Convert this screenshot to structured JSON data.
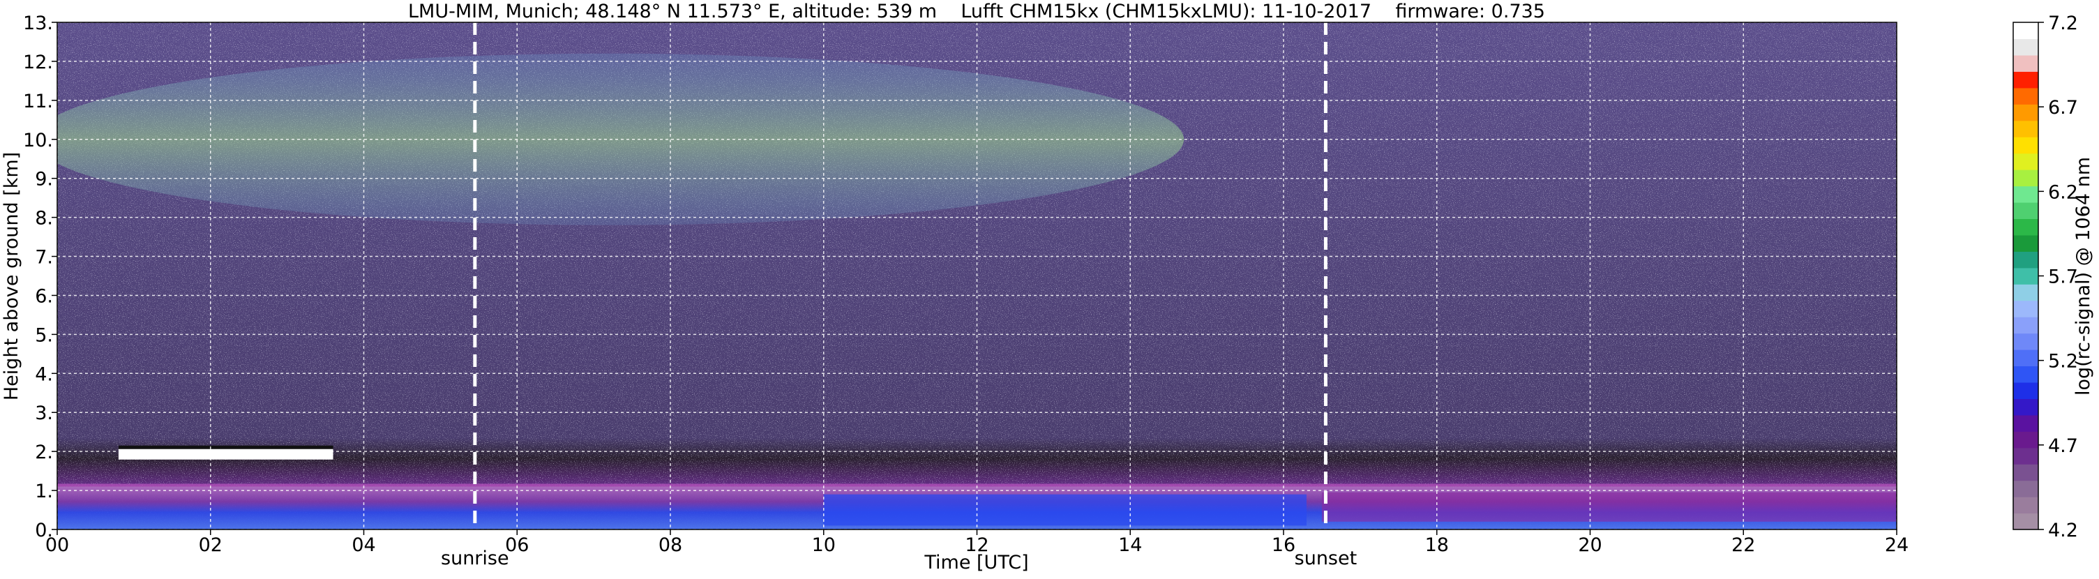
{
  "chart_data": {
    "type": "heatmap",
    "title": "LMU-MIM, Munich; 48.148° N 11.573° E, altitude: 539 m    Lufft CHM15kx (CHM15kxLMU): 11-10-2017    firmware: 0.735",
    "xlabel": "Time [UTC]",
    "ylabel": "Height above ground [km]",
    "xlim": [
      0,
      24
    ],
    "ylim": [
      0,
      13
    ],
    "x_ticks": [
      "00",
      "02",
      "04",
      "06",
      "08",
      "10",
      "12",
      "14",
      "16",
      "18",
      "20",
      "22",
      "24"
    ],
    "y_ticks": [
      "0.",
      "1.",
      "2.",
      "3.",
      "4.",
      "5.",
      "6.",
      "7.",
      "8.",
      "9.",
      "10.",
      "11.",
      "12.",
      "13."
    ],
    "grid": true,
    "colorbar": {
      "label": "log(rc-signal) @ 1064 nm",
      "range": [
        4.2,
        7.2
      ],
      "ticks": [
        "4.2",
        "4.7",
        "5.2",
        "5.7",
        "6.2",
        "6.7",
        "7.2"
      ],
      "colors": [
        "#a58fa5",
        "#9a7d9d",
        "#8a6c97",
        "#7a5191",
        "#6d2f8f",
        "#6a1a8e",
        "#5a12a0",
        "#3418c8",
        "#1e2fe8",
        "#2f55f5",
        "#4f6ff7",
        "#6f88f8",
        "#8aa0fa",
        "#9cb8fb",
        "#8fcfe6",
        "#3fbfa8",
        "#20a080",
        "#1a9a3a",
        "#2cb848",
        "#4fd070",
        "#6fe890",
        "#a8f040",
        "#e0f020",
        "#ffe000",
        "#ffc000",
        "#ff9a00",
        "#ff6a00",
        "#ff2000",
        "#f0c0c0",
        "#e8e8e8",
        "#ffffff"
      ]
    },
    "markers": [
      {
        "label": "sunrise",
        "x": 5.45
      },
      {
        "label": "sunset",
        "x": 16.55
      }
    ],
    "features": {
      "boundary_layer_top_km": 1.1,
      "cirrus_layer_km": [
        8.5,
        11.3
      ],
      "cirrus_time_range": [
        0,
        15
      ],
      "low_cloud_km": 1.9,
      "low_cloud_time_range": [
        0.8,
        3.6
      ]
    }
  }
}
